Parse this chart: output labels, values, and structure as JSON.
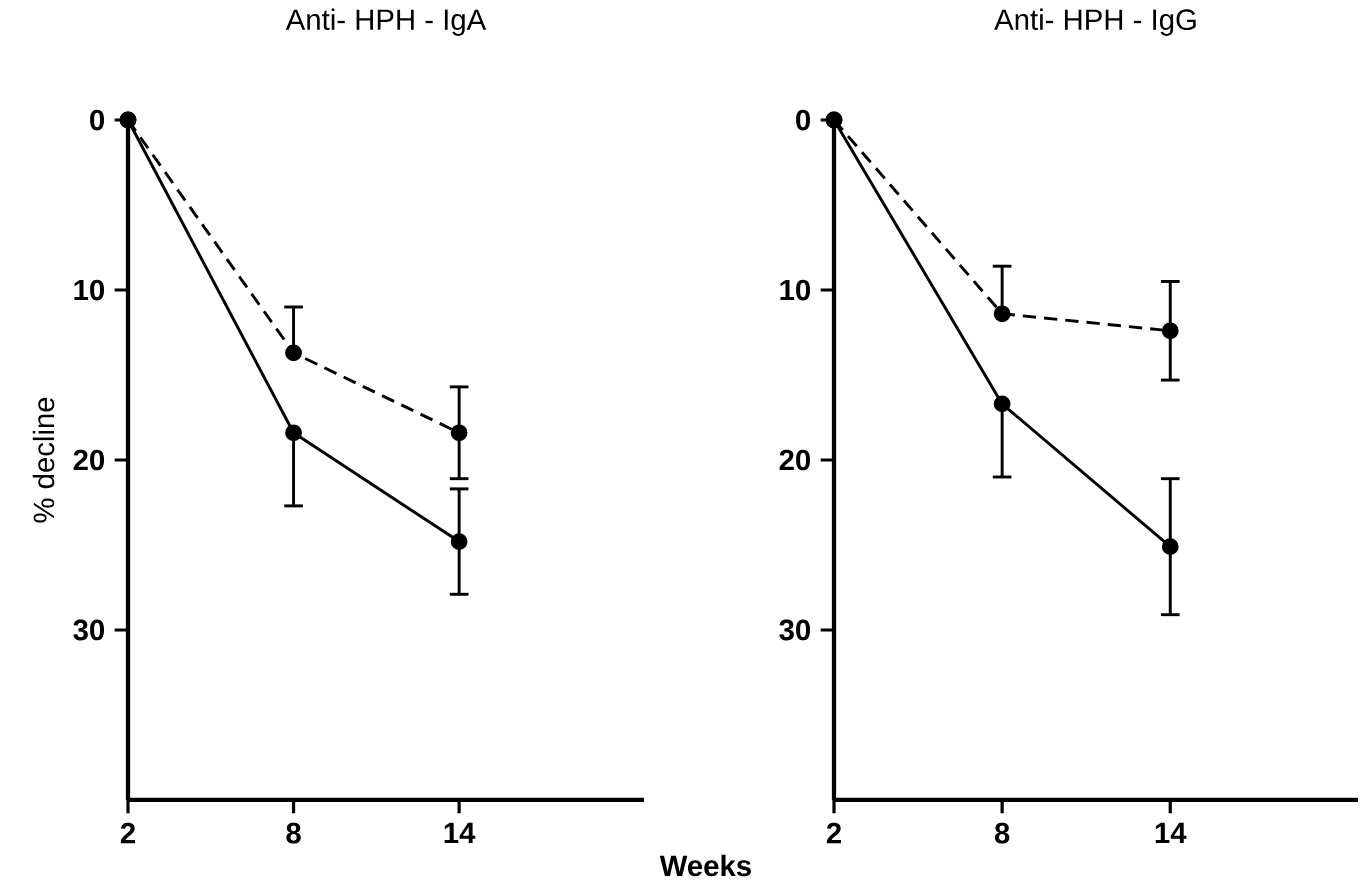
{
  "chart_data": [
    {
      "type": "line",
      "title": "Anti- HPH - IgA",
      "ylabel": "% decline",
      "xlabel": "Weeks",
      "x": [
        2,
        8,
        14
      ],
      "xlim": [
        2,
        20.7
      ],
      "xticks": [
        2,
        8,
        14
      ],
      "ylim": [
        40,
        0
      ],
      "yticks": [
        0,
        10,
        20,
        30
      ],
      "marker": "circle",
      "grid": false,
      "legend": false,
      "series": [
        {
          "color": "#000000",
          "line_style": "dashed",
          "values": [
            0,
            13.7,
            18.4
          ],
          "errors": [
            null,
            [
              11.0,
              13.7
            ],
            2.7
          ]
        },
        {
          "color": "#000000",
          "line_style": "solid",
          "values": [
            0,
            18.4,
            24.8
          ],
          "errors": [
            null,
            [
              18.4,
              22.7
            ],
            3.1
          ]
        }
      ]
    },
    {
      "type": "line",
      "title": "Anti- HPH - IgG",
      "x": [
        2,
        8,
        14
      ],
      "xlim": [
        2,
        20.7
      ],
      "xticks": [
        2,
        8,
        14
      ],
      "ylim": [
        40,
        0
      ],
      "yticks": [
        0,
        10,
        20,
        30
      ],
      "marker": "circle",
      "grid": false,
      "legend": false,
      "series": [
        {
          "color": "#000000",
          "line_style": "dashed",
          "values": [
            0,
            11.4,
            12.4
          ],
          "errors": [
            null,
            [
              8.6,
              11.4
            ],
            2.9
          ]
        },
        {
          "color": "#000000",
          "line_style": "solid",
          "values": [
            0,
            16.7,
            25.1
          ],
          "errors": [
            null,
            [
              16.7,
              21.0
            ],
            4.0
          ]
        }
      ]
    }
  ]
}
